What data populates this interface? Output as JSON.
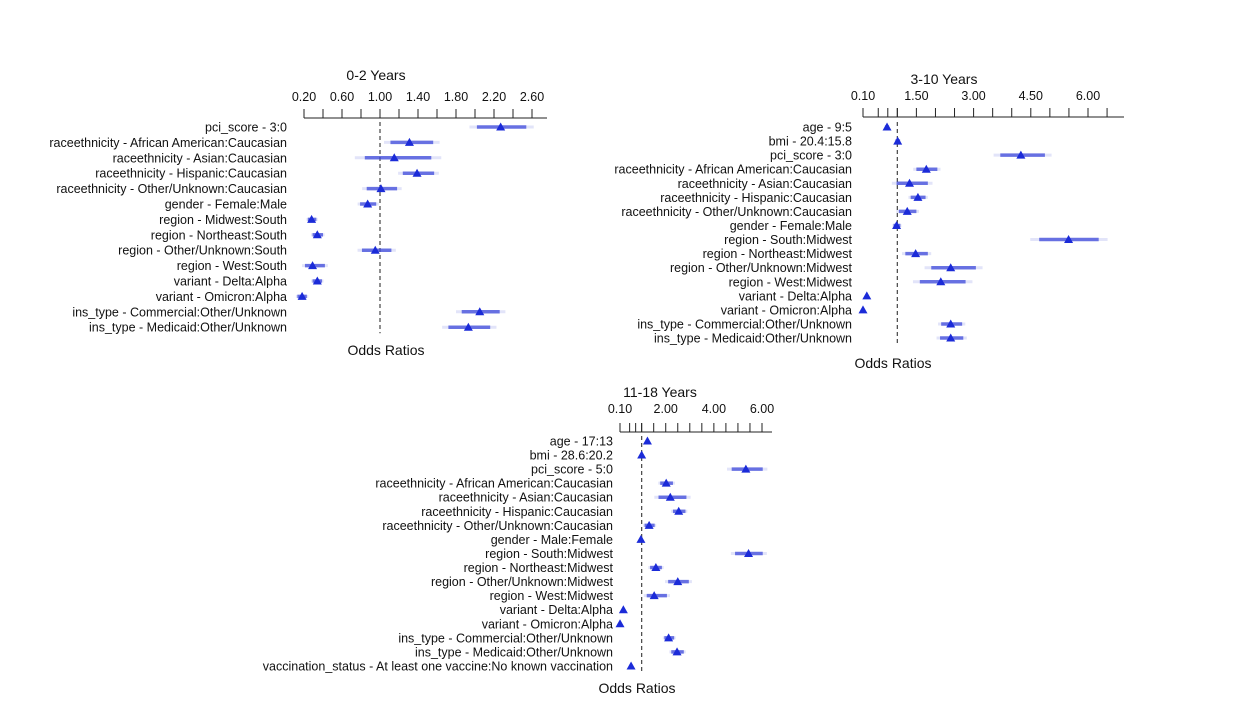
{
  "chart_data": [
    {
      "type": "forest",
      "title": "0-2 Years",
      "xlabel": "Odds Ratios",
      "tick_labels": [
        "0.20",
        "0.60",
        "1.00",
        "1.40",
        "1.80",
        "2.20",
        "2.60"
      ],
      "xlim": [
        0.2,
        2.6
      ],
      "reference_line": 1.0,
      "rows": [
        {
          "label": "pci_score - 3:0",
          "or": 2.27,
          "lo": 2.02,
          "hi": 2.54
        },
        {
          "label": "raceethnicity - African American:Caucasian",
          "or": 1.31,
          "lo": 1.11,
          "hi": 1.56
        },
        {
          "label": "raceethnicity - Asian:Caucasian",
          "or": 1.15,
          "lo": 0.84,
          "hi": 1.54
        },
        {
          "label": "raceethnicity - Hispanic:Caucasian",
          "or": 1.39,
          "lo": 1.24,
          "hi": 1.57
        },
        {
          "label": "raceethnicity - Other/Unknown:Caucasian",
          "or": 1.01,
          "lo": 0.86,
          "hi": 1.18
        },
        {
          "label": "gender - Female:Male",
          "or": 0.87,
          "lo": 0.79,
          "hi": 0.96
        },
        {
          "label": "region - Midwest:South",
          "or": 0.28,
          "lo": 0.24,
          "hi": 0.33
        },
        {
          "label": "region - Northeast:South",
          "or": 0.34,
          "lo": 0.29,
          "hi": 0.4
        },
        {
          "label": "region - Other/Unknown:South",
          "or": 0.95,
          "lo": 0.81,
          "hi": 1.12
        },
        {
          "label": "region - West:South",
          "or": 0.29,
          "lo": 0.21,
          "hi": 0.42
        },
        {
          "label": "variant - Delta:Alpha",
          "or": 0.34,
          "lo": 0.29,
          "hi": 0.39
        },
        {
          "label": "variant - Omicron:Alpha",
          "or": 0.18,
          "lo": 0.13,
          "hi": 0.23
        },
        {
          "label": "ins_type - Commercial:Other/Unknown",
          "or": 2.05,
          "lo": 1.86,
          "hi": 2.26
        },
        {
          "label": "ins_type - Medicaid:Other/Unknown",
          "or": 1.93,
          "lo": 1.72,
          "hi": 2.16
        }
      ]
    },
    {
      "type": "forest",
      "title": "3-10 Years",
      "xlabel": "Odds Ratios",
      "tick_labels": [
        "0.10",
        "1.50",
        "3.00",
        "4.50",
        "6.00"
      ],
      "xlim": [
        0.1,
        6.0
      ],
      "reference_line": 1.0,
      "rows": [
        {
          "label": "age - 9:5",
          "or": 0.73,
          "lo": 0.68,
          "hi": 0.78
        },
        {
          "label": "bmi - 20.4:15.8",
          "or": 1.01,
          "lo": 0.95,
          "hi": 1.07
        },
        {
          "label": "pci_score - 3:0",
          "or": 4.24,
          "lo": 3.7,
          "hi": 4.87
        },
        {
          "label": "raceethnicity - African American:Caucasian",
          "or": 1.76,
          "lo": 1.5,
          "hi": 2.05
        },
        {
          "label": "raceethnicity - Asian:Caucasian",
          "or": 1.32,
          "lo": 0.98,
          "hi": 1.8
        },
        {
          "label": "raceethnicity - Hispanic:Caucasian",
          "or": 1.54,
          "lo": 1.35,
          "hi": 1.74
        },
        {
          "label": "raceethnicity - Other/Unknown:Caucasian",
          "or": 1.26,
          "lo": 1.04,
          "hi": 1.5
        },
        {
          "label": "gender - Female:Male",
          "or": 0.98,
          "lo": 0.9,
          "hi": 1.08
        },
        {
          "label": "region - South:Midwest",
          "or": 5.49,
          "lo": 4.72,
          "hi": 6.28
        },
        {
          "label": "region - Northeast:Midwest",
          "or": 1.48,
          "lo": 1.21,
          "hi": 1.8
        },
        {
          "label": "region - Other/Unknown:Midwest",
          "or": 2.4,
          "lo": 1.89,
          "hi": 3.06
        },
        {
          "label": "region - West:Midwest",
          "or": 2.14,
          "lo": 1.59,
          "hi": 2.79
        },
        {
          "label": "variant - Delta:Alpha",
          "or": 0.2,
          "lo": 0.17,
          "hi": 0.23
        },
        {
          "label": "variant - Omicron:Alpha",
          "or": 0.1,
          "lo": 0.08,
          "hi": 0.12
        },
        {
          "label": "ins_type - Commercial:Other/Unknown",
          "or": 2.4,
          "lo": 2.15,
          "hi": 2.7
        },
        {
          "label": "ins_type - Medicaid:Other/Unknown",
          "or": 2.4,
          "lo": 2.12,
          "hi": 2.73
        }
      ]
    },
    {
      "type": "forest",
      "title": "11-18 Years",
      "xlabel": "Odds Ratios",
      "tick_labels": [
        "0.10",
        "2.00",
        "4.00",
        "6.00"
      ],
      "xlim": [
        0.1,
        6.0
      ],
      "reference_line": 1.0,
      "rows": [
        {
          "label": "age - 17:13",
          "or": 1.24,
          "lo": 1.18,
          "hi": 1.3
        },
        {
          "label": "bmi - 28.6:20.2",
          "or": 1.0,
          "lo": 0.96,
          "hi": 1.04
        },
        {
          "label": "pci_score - 5:0",
          "or": 5.33,
          "lo": 4.74,
          "hi": 6.03
        },
        {
          "label": "raceethnicity - African American:Caucasian",
          "or": 2.02,
          "lo": 1.77,
          "hi": 2.3
        },
        {
          "label": "raceethnicity - Asian:Caucasian",
          "or": 2.19,
          "lo": 1.7,
          "hi": 2.86
        },
        {
          "label": "raceethnicity - Hispanic:Caucasian",
          "or": 2.54,
          "lo": 2.3,
          "hi": 2.82
        },
        {
          "label": "raceethnicity - Other/Unknown:Caucasian",
          "or": 1.31,
          "lo": 1.12,
          "hi": 1.54
        },
        {
          "label": "gender - Male:Female",
          "or": 0.97,
          "lo": 0.92,
          "hi": 1.02
        },
        {
          "label": "region - South:Midwest",
          "or": 5.44,
          "lo": 4.88,
          "hi": 6.03
        },
        {
          "label": "region - Northeast:Midwest",
          "or": 1.59,
          "lo": 1.35,
          "hi": 1.84
        },
        {
          "label": "region - Other/Unknown:Midwest",
          "or": 2.5,
          "lo": 2.1,
          "hi": 2.96
        },
        {
          "label": "region - West:Midwest",
          "or": 1.52,
          "lo": 1.21,
          "hi": 2.05
        },
        {
          "label": "variant - Delta:Alpha",
          "or": 0.24,
          "lo": 0.21,
          "hi": 0.27
        },
        {
          "label": "variant - Omicron:Alpha",
          "or": 0.1,
          "lo": 0.08,
          "hi": 0.12
        },
        {
          "label": "ins_type - Commercial:Other/Unknown",
          "or": 2.12,
          "lo": 1.94,
          "hi": 2.35
        },
        {
          "label": "ins_type - Medicaid:Other/Unknown",
          "or": 2.47,
          "lo": 2.23,
          "hi": 2.75
        },
        {
          "label": "vaccination_status - At least one vaccine:No known vaccination",
          "or": 0.56,
          "lo": 0.5,
          "hi": 0.62
        }
      ]
    }
  ],
  "colors": {
    "point": "#1b2bd8",
    "ci": "#3d4ad9"
  }
}
